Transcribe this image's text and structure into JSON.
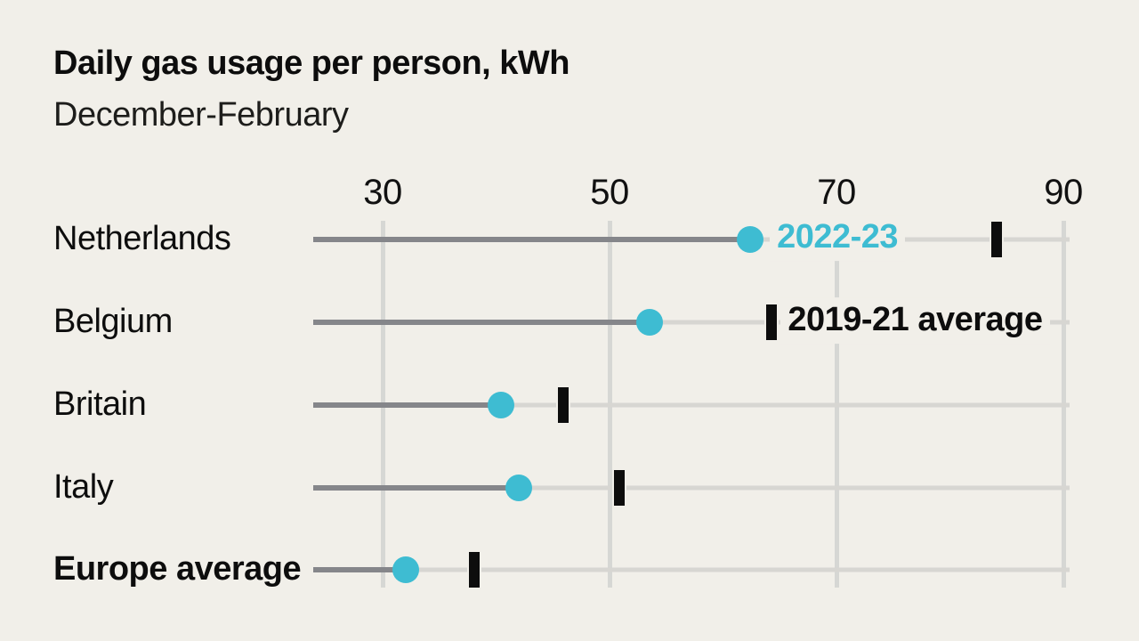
{
  "page": {
    "background": "#f1efe9"
  },
  "header": {
    "title": "Daily gas usage per person, kWh",
    "subtitle": "December-February"
  },
  "colors": {
    "background": "#f1efe9",
    "accent_teal": "#3ebcd2",
    "connector_gray": "#85868a",
    "grid_gray": "#d6d7d4",
    "ink_black": "#0d0d0d"
  },
  "chart_data": {
    "type": "scatter",
    "variant": "dumbbell-dot-plot",
    "title": "Daily gas usage per person, kWh",
    "subtitle": "December-February",
    "xlabel": "",
    "ylabel": "",
    "axis_position": "top",
    "grid": "vertical",
    "x_ticks": [
      30,
      50,
      70,
      90
    ],
    "xlim": [
      23.9,
      90.5
    ],
    "categories": [
      "Netherlands",
      "Belgium",
      "Britain",
      "Italy",
      "Europe average"
    ],
    "bold_categories": [
      "Europe average"
    ],
    "series": [
      {
        "name": "2022-23",
        "marker": "circle",
        "color": "#3ebcd2",
        "values": [
          62.4,
          53.5,
          40.4,
          42.0,
          32.0
        ]
      },
      {
        "name": "2019-21 average",
        "marker": "vertical-bar",
        "color": "#0d0d0d",
        "values": [
          84.1,
          64.3,
          45.9,
          50.9,
          38.1
        ]
      }
    ],
    "legend": {
      "style": "inline-labels",
      "dot_label_row": 0,
      "bar_label_row": 1
    },
    "connector": {
      "description": "gray line from axis start to 2022-23 dot",
      "color": "#85868a"
    }
  }
}
